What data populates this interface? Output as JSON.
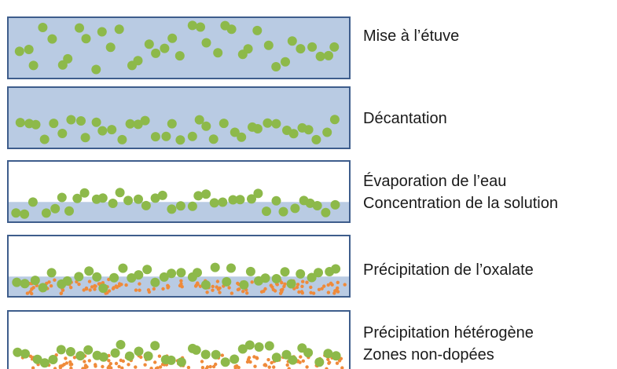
{
  "colors": {
    "liquid": "#b9cbe3",
    "frame": "#3e5d8c",
    "particle_green": "#8db94a",
    "particle_orange": "#ef8a3a",
    "background": "#ffffff",
    "text": "#1a1a1a"
  },
  "steps": [
    {
      "id": "oven",
      "lines": [
        "Mise à l’étuve"
      ],
      "liquid_level": 1.0,
      "particle_mode": "suspended",
      "orange_precipitate": false
    },
    {
      "id": "decantation",
      "lines": [
        "Décantation"
      ],
      "liquid_level": 1.0,
      "particle_mode": "settled",
      "orange_precipitate": false
    },
    {
      "id": "evaporation",
      "lines": [
        "Évaporation de l’eau",
        "Concentration de la solution"
      ],
      "liquid_level": 0.33,
      "particle_mode": "settled",
      "orange_precipitate": false
    },
    {
      "id": "oxalate",
      "lines": [
        "Précipitation de l’oxalate"
      ],
      "liquid_level": 0.33,
      "particle_mode": "settled",
      "orange_precipitate": true
    },
    {
      "id": "heterogeneous",
      "lines": [
        "Précipitation hétérogène",
        "Zones non-dopées"
      ],
      "liquid_level": 0.0,
      "particle_mode": "settled",
      "orange_precipitate": true
    }
  ]
}
